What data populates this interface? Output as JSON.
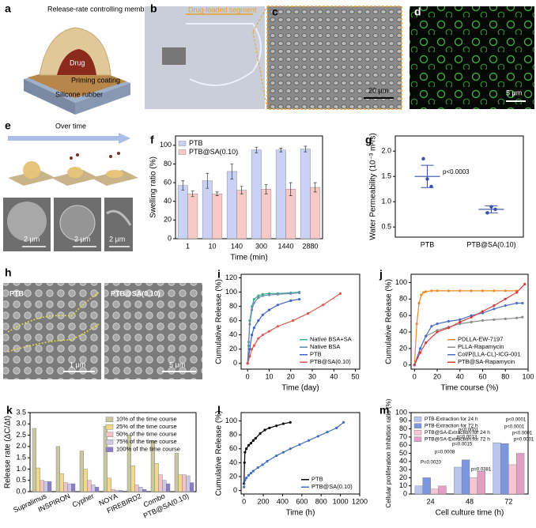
{
  "image_panels": [
    {
      "label": "a",
      "texts": [
        "Release-rate controlling membrane",
        "Drug",
        "Priming coating",
        "Silicone rubber"
      ]
    },
    {
      "label": "b",
      "texts": [
        "Drug-loaded segment"
      ]
    },
    {
      "label": "c",
      "texts": [
        "20 μm"
      ]
    },
    {
      "label": "d",
      "texts": [
        "5 μm"
      ]
    },
    {
      "label": "e",
      "texts": [
        "Over time",
        "2 μm",
        "2 μm",
        "2 μm"
      ]
    },
    {
      "label": "h",
      "texts": [
        "PTB",
        "PTB@SA(0.10)",
        "1 μm",
        "5 μm"
      ]
    }
  ],
  "chart_data": [
    {
      "type": "bar",
      "label": "f",
      "xlabel": "Time (min)",
      "ylabel": "Swelling ratio (%)",
      "categories": [
        "1",
        "10",
        "140",
        "300",
        "1440",
        "2880"
      ],
      "series": [
        {
          "name": "PTB",
          "color": "#c9d2f5",
          "values": [
            57,
            62,
            72,
            95,
            95,
            96
          ],
          "errors": [
            5,
            8,
            8,
            3,
            2,
            3
          ]
        },
        {
          "name": "PTB@SA(0.10)",
          "color": "#f8c9c9",
          "values": [
            48,
            48,
            52,
            53,
            53,
            55
          ],
          "errors": [
            3,
            2,
            4,
            5,
            7,
            5
          ]
        }
      ],
      "ylim": [
        0,
        110
      ],
      "yticks": [
        0,
        20,
        40,
        60,
        80,
        100
      ],
      "legend": "upper left"
    },
    {
      "type": "scatter",
      "label": "g",
      "ylabel": "Water Permeability (10⁻³ m²/s)",
      "categories": [
        "PTB",
        "PTB@SA(0.10)"
      ],
      "color": "#3a4fa8",
      "values": [
        1.5,
        0.85
      ],
      "errors": [
        0.22,
        0.07
      ],
      "points": [
        [
          1.85,
          1.45,
          1.3
        ],
        [
          0.78,
          0.9,
          0.85
        ]
      ],
      "ylim": [
        0.3,
        2.3
      ],
      "yticks": [
        {
          "value": 0.5,
          "label": "0.5"
        },
        {
          "value": 1,
          "label": "1.0"
        },
        {
          "value": 1.5,
          "label": "1.5"
        },
        {
          "value": 2,
          "label": "2.0"
        }
      ],
      "annotations": [
        "p<0.0003"
      ]
    },
    {
      "type": "line",
      "label": "i",
      "xlabel": "Time (day)",
      "ylabel": "Cumulative Release (%)",
      "markers": true,
      "series": [
        {
          "name": "Native BSA+SA",
          "color": "#3cb48c",
          "x": [
            0,
            0.5,
            1,
            2,
            3,
            5,
            7,
            10,
            14,
            20,
            24
          ],
          "values": [
            0,
            30,
            60,
            80,
            90,
            95,
            97,
            98,
            98,
            99,
            100
          ]
        },
        {
          "name": "Native BSA",
          "color": "#6f8ab0",
          "x": [
            0,
            0.5,
            1,
            2,
            3,
            5,
            7,
            10,
            14,
            20,
            24
          ],
          "values": [
            0,
            25,
            55,
            75,
            85,
            92,
            95,
            96,
            97,
            98,
            99
          ]
        },
        {
          "name": "PTB",
          "color": "#3f63c8",
          "x": [
            0,
            1,
            2,
            3,
            5,
            7,
            10,
            14,
            20,
            24
          ],
          "values": [
            0,
            20,
            40,
            50,
            60,
            68,
            75,
            82,
            88,
            90
          ]
        },
        {
          "name": "PTB@SA(0.10)",
          "color": "#e0554f",
          "x": [
            0,
            1,
            2,
            3,
            5,
            7,
            10,
            14,
            21,
            28,
            35,
            43
          ],
          "values": [
            0,
            10,
            20,
            25,
            35,
            40,
            45,
            52,
            60,
            70,
            82,
            98
          ]
        }
      ],
      "xlim": [
        -3,
        52
      ],
      "xticks": [
        0,
        10,
        20,
        30,
        40,
        50
      ],
      "ylim": [
        -8,
        125
      ],
      "yticks": [
        0,
        20,
        40,
        60,
        80,
        100,
        120
      ],
      "legend": "lower right"
    },
    {
      "type": "line",
      "label": "j",
      "xlabel": "Time course (%)",
      "ylabel": "Cumulative Release (%)",
      "markers": true,
      "series": [
        {
          "name": "PDLLA-EW-7197",
          "color": "#f08a24",
          "x": [
            0,
            2,
            4,
            6,
            8,
            10,
            15,
            20,
            30,
            40,
            50,
            60,
            70,
            80,
            90
          ],
          "values": [
            0,
            50,
            75,
            85,
            88,
            89,
            90,
            90,
            90,
            90,
            90,
            90,
            90,
            90,
            90
          ]
        },
        {
          "name": "PLLA-Rapamycin",
          "color": "#8c8c8c",
          "x": [
            0,
            5,
            10,
            20,
            30,
            40,
            50,
            60,
            70,
            80,
            90,
            95
          ],
          "values": [
            0,
            20,
            35,
            42,
            46,
            50,
            52,
            54,
            55,
            56,
            57,
            58
          ]
        },
        {
          "name": "Col/P(LLA-CL)-ICG-001",
          "color": "#4a6fc4",
          "x": [
            0,
            5,
            10,
            15,
            20,
            30,
            40,
            50,
            60,
            70,
            80,
            90,
            95
          ],
          "values": [
            0,
            20,
            35,
            47,
            50,
            53,
            55,
            60,
            63,
            68,
            72,
            75,
            75
          ]
        },
        {
          "name": "PTB@SA-Rapamycin",
          "color": "#d93a3a",
          "x": [
            0,
            5,
            10,
            20,
            30,
            40,
            50,
            60,
            70,
            80,
            90,
            97
          ],
          "values": [
            0,
            15,
            27,
            40,
            45,
            52,
            58,
            65,
            72,
            80,
            88,
            98
          ]
        }
      ],
      "xlim": [
        -3,
        100
      ],
      "xticks": [
        0,
        20,
        40,
        60,
        80,
        100
      ],
      "ylim": [
        -5,
        110
      ],
      "yticks": [
        0,
        20,
        40,
        60,
        80,
        100
      ],
      "legend": "lower right"
    },
    {
      "type": "bar",
      "label": "k",
      "ylabel": "Release rate (ΔC/Δt)",
      "categories": [
        "Supralimus",
        "INSPIRON",
        "Cypher",
        "NOYA",
        "FIREBIRD2",
        "Combo",
        "PTB@SA(0.10)"
      ],
      "series": [
        {
          "name": "10% of the time course",
          "color": "#c8c7a0",
          "values": [
            2.8,
            2,
            1.8,
            2.9,
            2.5,
            2.25,
            1.7
          ]
        },
        {
          "name": "25% of the time course",
          "color": "#f3d78a",
          "values": [
            1.05,
            0.8,
            1,
            0.6,
            1.15,
            1.25,
            0.75
          ]
        },
        {
          "name": "50% of the time course",
          "color": "#f2c4c6",
          "values": [
            0.5,
            0.4,
            0.5,
            0.1,
            0.3,
            0.75,
            0.75
          ]
        },
        {
          "name": "75% of the time course",
          "color": "#cbc8e8",
          "values": [
            0.45,
            0.35,
            0.3,
            0.05,
            0.2,
            0.5,
            0.7
          ]
        },
        {
          "name": "100% of the time course",
          "color": "#8b7fcb",
          "values": [
            0.45,
            0.35,
            0.2,
            0.05,
            0.1,
            0.35,
            0.4
          ]
        }
      ],
      "ylim": [
        0,
        3.5
      ],
      "yticks": [
        {
          "value": 0,
          "label": "0.0"
        },
        {
          "value": 0.5,
          "label": "0.5"
        },
        {
          "value": 1,
          "label": "1.0"
        },
        {
          "value": 1.5,
          "label": "1.5"
        },
        {
          "value": 2,
          "label": "2.0"
        },
        {
          "value": 2.5,
          "label": "2.5"
        },
        {
          "value": 3,
          "label": "3.0"
        },
        {
          "value": 3.5,
          "label": "3.5"
        }
      ],
      "legend": "upper right"
    },
    {
      "type": "line",
      "label": "l",
      "xlabel": "Time (h)",
      "ylabel": "Cumulative Release (%)",
      "markers": true,
      "series": [
        {
          "name": "PTB",
          "color": "#000000",
          "x": [
            0,
            5,
            10,
            24,
            48,
            72,
            96,
            120,
            168,
            216,
            264,
            336,
            408,
            480
          ],
          "values": [
            10,
            40,
            55,
            60,
            65,
            68,
            72,
            75,
            82,
            87,
            90,
            93,
            96,
            98
          ]
        },
        {
          "name": "PTB@SA(0.10)",
          "color": "#3f6fc0",
          "x": [
            0,
            10,
            24,
            48,
            72,
            96,
            144,
            192,
            240,
            336,
            408,
            480,
            576,
            672,
            768,
            864,
            960,
            1032
          ],
          "values": [
            5,
            15,
            18,
            22,
            25,
            28,
            33,
            37,
            42,
            50,
            55,
            60,
            66,
            72,
            78,
            84,
            90,
            98
          ]
        }
      ],
      "xlim": [
        -30,
        1200
      ],
      "xticks": [
        0,
        200,
        400,
        600,
        800,
        1000,
        1200
      ],
      "ylim": [
        -5,
        112
      ],
      "yticks": [
        0,
        20,
        40,
        60,
        80,
        100
      ],
      "legend": "lower right"
    },
    {
      "type": "bar",
      "label": "m",
      "xlabel": "Cell culture time (h)",
      "ylabel": "Cellular proliferation Inhibition ratio (%)",
      "categories": [
        "24",
        "48",
        "72"
      ],
      "series": [
        {
          "name": "PTB-Extraction for 24 h",
          "color": "#b9c6f0",
          "values": [
            10,
            33,
            63
          ]
        },
        {
          "name": "PTB-Extraction for 72 h",
          "color": "#7d96e0",
          "values": [
            20,
            42,
            62
          ]
        },
        {
          "name": "PTB@SA-Extraction for 24 h",
          "color": "#f6c6d2",
          "values": [
            6,
            20,
            36
          ]
        },
        {
          "name": "PTB@SA-Extraction for 72 h",
          "color": "#e39fc4",
          "values": [
            10,
            28,
            50
          ]
        }
      ],
      "ylim": [
        0,
        100
      ],
      "yticks": [
        0,
        10,
        20,
        30,
        40,
        50,
        60,
        70,
        80,
        90,
        100
      ],
      "legend": "upper left",
      "annotations": [
        "P=0.0020",
        "p=0.0008",
        "p=0.0015",
        "p=0.0013",
        "p<0.0001",
        "p=0.0381",
        "p<0.0001",
        "p<0.0001",
        "p<0.0001",
        "p<0.0001"
      ]
    }
  ]
}
